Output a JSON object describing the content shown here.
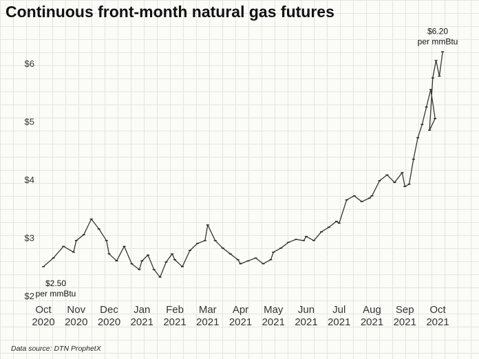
{
  "page": {
    "source_note": "Data source: DTN ProphetX"
  },
  "chart_data": {
    "type": "line",
    "title": "Continuous front-month natural gas futures",
    "xlabel": "",
    "ylabel": "",
    "ylim": [
      2,
      6.5
    ],
    "yticks": [
      {
        "value": 2,
        "label": "$2"
      },
      {
        "value": 3,
        "label": "$3"
      },
      {
        "value": 4,
        "label": "$4"
      },
      {
        "value": 5,
        "label": "$5"
      },
      {
        "value": 6,
        "label": "$6"
      }
    ],
    "x_ticks": [
      {
        "month": "Oct",
        "year": "2020"
      },
      {
        "month": "Nov",
        "year": "2020"
      },
      {
        "month": "Dec",
        "year": "2020"
      },
      {
        "month": "Jan",
        "year": "2021"
      },
      {
        "month": "Feb",
        "year": "2021"
      },
      {
        "month": "Mar",
        "year": "2021"
      },
      {
        "month": "Apr",
        "year": "2021"
      },
      {
        "month": "May",
        "year": "2021"
      },
      {
        "month": "Jun",
        "year": "2021"
      },
      {
        "month": "Jul",
        "year": "2021"
      },
      {
        "month": "Aug",
        "year": "2021"
      },
      {
        "month": "Sep",
        "year": "2021"
      },
      {
        "month": "Oct",
        "year": "2021"
      }
    ],
    "grid": true,
    "line_color": "#333333",
    "annotations": [
      {
        "lines": [
          "$2.50",
          "per mmBtu"
        ],
        "x": "Oct 2020",
        "y": 2.5,
        "placement": "below"
      },
      {
        "lines": [
          "$6.20",
          "per mmBtu"
        ],
        "x": "Oct 2021",
        "y": 6.2,
        "placement": "above"
      }
    ],
    "series": [
      {
        "values": [
          [
            "Oct 2020",
            2.5
          ],
          [
            "Oct 2020",
            2.65
          ],
          [
            "Oct 2020",
            2.85
          ],
          [
            "Oct 2020",
            2.75
          ],
          [
            "Nov 2020",
            2.95
          ],
          [
            "Nov 2020",
            3.05
          ],
          [
            "Nov 2020",
            3.32
          ],
          [
            "Nov 2020",
            3.15
          ],
          [
            "Nov 2020",
            2.95
          ],
          [
            "Dec 2020",
            2.72
          ],
          [
            "Dec 2020",
            2.6
          ],
          [
            "Dec 2020",
            2.85
          ],
          [
            "Dec 2020",
            2.55
          ],
          [
            "Dec 2020",
            2.45
          ],
          [
            "Jan 2021",
            2.6
          ],
          [
            "Jan 2021",
            2.7
          ],
          [
            "Jan 2021",
            2.45
          ],
          [
            "Jan 2021",
            2.32
          ],
          [
            "Jan 2021",
            2.58
          ],
          [
            "Jan 2021",
            2.72
          ],
          [
            "Feb 2021",
            2.62
          ],
          [
            "Feb 2021",
            2.5
          ],
          [
            "Feb 2021",
            2.78
          ],
          [
            "Feb 2021",
            2.9
          ],
          [
            "Feb 2021",
            2.95
          ],
          [
            "Mar 2021",
            3.22
          ],
          [
            "Mar 2021",
            2.95
          ],
          [
            "Mar 2021",
            2.82
          ],
          [
            "Mar 2021",
            2.72
          ],
          [
            "Mar 2021",
            2.62
          ],
          [
            "Apr 2021",
            2.55
          ],
          [
            "Apr 2021",
            2.6
          ],
          [
            "Apr 2021",
            2.65
          ],
          [
            "Apr 2021",
            2.55
          ],
          [
            "Apr 2021",
            2.62
          ],
          [
            "May 2021",
            2.75
          ],
          [
            "May 2021",
            2.82
          ],
          [
            "May 2021",
            2.92
          ],
          [
            "May 2021",
            2.97
          ],
          [
            "May 2021",
            2.95
          ],
          [
            "Jun 2021",
            3.02
          ],
          [
            "Jun 2021",
            2.95
          ],
          [
            "Jun 2021",
            3.1
          ],
          [
            "Jun 2021",
            3.18
          ],
          [
            "Jun 2021",
            3.28
          ],
          [
            "Jul 2021",
            3.25
          ],
          [
            "Jul 2021",
            3.65
          ],
          [
            "Jul 2021",
            3.72
          ],
          [
            "Jul 2021",
            3.62
          ],
          [
            "Jul 2021",
            3.68
          ],
          [
            "Aug 2021",
            3.72
          ],
          [
            "Aug 2021",
            3.98
          ],
          [
            "Aug 2021",
            4.08
          ],
          [
            "Aug 2021",
            3.95
          ],
          [
            "Aug 2021",
            4.12
          ],
          [
            "Sep 2021",
            3.88
          ],
          [
            "Sep 2021",
            3.92
          ],
          [
            "Sep 2021",
            4.35
          ],
          [
            "Sep 2021",
            4.72
          ],
          [
            "Sep 2021",
            4.95
          ],
          [
            "Sep 2021",
            5.25
          ],
          [
            "Sep 2021",
            5.55
          ],
          [
            "Sep 2021",
            5.05
          ],
          [
            "Oct 2021",
            4.85
          ],
          [
            "Oct 2021",
            5.75
          ],
          [
            "Oct 2021",
            6.05
          ],
          [
            "Oct 2021",
            5.78
          ],
          [
            "Oct 2021",
            6.2
          ]
        ]
      }
    ]
  }
}
